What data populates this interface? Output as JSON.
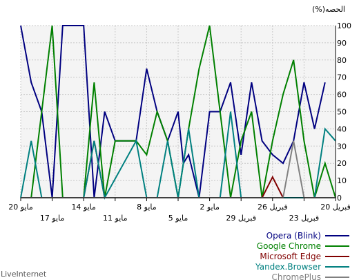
{
  "chart_data": {
    "type": "line",
    "ylabel": "(%)الحصه",
    "ylim": [
      0,
      100
    ],
    "y_ticks": [
      "0",
      "10",
      "20",
      "30",
      "40",
      "50",
      "60",
      "70",
      "80",
      "90",
      "100"
    ],
    "x_reversed": true,
    "x_range": [
      "2023-04-20",
      "2023-05-20"
    ],
    "x_ticks": [
      {
        "date": "2023-04-20",
        "label": "20 قبريل"
      },
      {
        "date": "2023-04-23",
        "label": "23 قبريل"
      },
      {
        "date": "2023-04-26",
        "label": "26 قبريل"
      },
      {
        "date": "2023-04-29",
        "label": "29 قبريل"
      },
      {
        "date": "2023-05-02",
        "label": "2 مايو"
      },
      {
        "date": "2023-05-05",
        "label": "5 مايو"
      },
      {
        "date": "2023-05-08",
        "label": "8 مايو"
      },
      {
        "date": "2023-05-11",
        "label": "11 مايو"
      },
      {
        "date": "2023-05-14",
        "label": "14 مايو"
      },
      {
        "date": "2023-05-17",
        "label": "17 مايو"
      },
      {
        "date": "2023-05-20",
        "label": "20 مايو"
      }
    ],
    "grid": true,
    "legend_position": "bottom-right",
    "series": [
      {
        "name": "Opera (Blink)",
        "color": "#000080",
        "points": [
          [
            "2023-05-20",
            100
          ],
          [
            "2023-05-19",
            67
          ],
          [
            "2023-05-18",
            50
          ],
          [
            "2023-05-17",
            0
          ],
          [
            "2023-05-16",
            100
          ],
          [
            "2023-05-15",
            100
          ],
          [
            "2023-05-14",
            100
          ],
          [
            "2023-05-13",
            0
          ],
          [
            "2023-05-12",
            50
          ],
          [
            "2023-05-11",
            33
          ],
          [
            "2023-05-10",
            33
          ],
          [
            "2023-05-09",
            33
          ],
          [
            "2023-05-08",
            75
          ],
          [
            "2023-05-07",
            50
          ],
          [
            "2023-05-06",
            33
          ],
          [
            "2023-05-05",
            50
          ],
          [
            "2023-05-04.5",
            20
          ],
          [
            "2023-05-04",
            25
          ],
          [
            "2023-05-03",
            0
          ],
          [
            "2023-05-02",
            50
          ],
          [
            "2023-05-01",
            50
          ],
          [
            "2023-04-30",
            67
          ],
          [
            "2023-04-29",
            25
          ],
          [
            "2023-04-28",
            67
          ],
          [
            "2023-04-27",
            33
          ],
          [
            "2023-04-26",
            25
          ],
          [
            "2023-04-25",
            20
          ],
          [
            "2023-04-24",
            33
          ],
          [
            "2023-04-23",
            67
          ],
          [
            "2023-04-22",
            40
          ],
          [
            "2023-04-21",
            67
          ]
        ]
      },
      {
        "name": "Google Chrome",
        "color": "#008000",
        "points": [
          [
            "2023-05-20",
            0
          ],
          [
            "2023-05-19",
            0
          ],
          [
            "2023-05-18",
            50
          ],
          [
            "2023-05-17",
            100
          ],
          [
            "2023-05-16",
            0
          ],
          [
            "2023-05-15",
            0
          ],
          [
            "2023-05-14",
            0
          ],
          [
            "2023-05-13",
            67
          ],
          [
            "2023-05-12",
            0
          ],
          [
            "2023-05-11",
            33
          ],
          [
            "2023-05-10",
            33
          ],
          [
            "2023-05-09",
            33
          ],
          [
            "2023-05-08",
            25
          ],
          [
            "2023-05-07",
            50
          ],
          [
            "2023-05-06",
            33
          ],
          [
            "2023-05-05",
            0
          ],
          [
            "2023-05-04",
            40
          ],
          [
            "2023-05-03",
            75
          ],
          [
            "2023-05-02",
            100
          ],
          [
            "2023-05-01",
            50
          ],
          [
            "2023-04-30",
            0
          ],
          [
            "2023-04-29",
            33
          ],
          [
            "2023-04-28",
            50
          ],
          [
            "2023-04-27",
            0
          ],
          [
            "2023-04-26",
            33
          ],
          [
            "2023-04-25",
            60
          ],
          [
            "2023-04-24",
            80
          ],
          [
            "2023-04-23",
            33
          ],
          [
            "2023-04-22",
            0
          ],
          [
            "2023-04-21",
            20
          ],
          [
            "2023-04-20",
            0
          ]
        ]
      },
      {
        "name": "Microsoft Edge",
        "color": "#800000",
        "points": [
          [
            "2023-05-20",
            0
          ],
          [
            "2023-05-15",
            0
          ],
          [
            "2023-05-14",
            0
          ],
          [
            "2023-05-13",
            33
          ],
          [
            "2023-05-12",
            0
          ],
          [
            "2023-04-27",
            0
          ],
          [
            "2023-04-26",
            12
          ],
          [
            "2023-04-25",
            0
          ],
          [
            "2023-04-20",
            0
          ]
        ]
      },
      {
        "name": "Yandex.Browser",
        "color": "#008080",
        "points": [
          [
            "2023-05-20",
            0
          ],
          [
            "2023-05-19",
            33
          ],
          [
            "2023-05-18",
            0
          ],
          [
            "2023-05-17",
            0
          ],
          [
            "2023-05-16",
            0
          ],
          [
            "2023-05-15",
            0
          ],
          [
            "2023-05-14",
            0
          ],
          [
            "2023-05-13",
            33
          ],
          [
            "2023-05-12",
            0
          ],
          [
            "2023-05-09",
            33
          ],
          [
            "2023-05-08",
            0
          ],
          [
            "2023-05-07",
            0
          ],
          [
            "2023-05-06",
            33
          ],
          [
            "2023-05-05",
            0
          ],
          [
            "2023-05-04",
            40
          ],
          [
            "2023-05-03",
            0
          ],
          [
            "2023-05-02",
            0
          ],
          [
            "2023-05-01",
            0
          ],
          [
            "2023-04-30",
            50
          ],
          [
            "2023-04-29",
            0
          ],
          [
            "2023-04-28",
            0
          ],
          [
            "2023-04-27",
            0
          ],
          [
            "2023-04-26",
            0
          ],
          [
            "2023-04-25",
            0
          ],
          [
            "2023-04-24",
            0
          ],
          [
            "2023-04-23",
            0
          ],
          [
            "2023-04-22",
            0
          ],
          [
            "2023-04-21",
            40
          ],
          [
            "2023-04-20",
            33
          ]
        ]
      },
      {
        "name": "ChromePlus",
        "color": "#808080",
        "points": [
          [
            "2023-05-20",
            0
          ],
          [
            "2023-04-25",
            0
          ],
          [
            "2023-04-24",
            33
          ],
          [
            "2023-04-23",
            0
          ],
          [
            "2023-04-20",
            0
          ]
        ]
      }
    ]
  },
  "footer": {
    "brand": "LiveInternet"
  }
}
